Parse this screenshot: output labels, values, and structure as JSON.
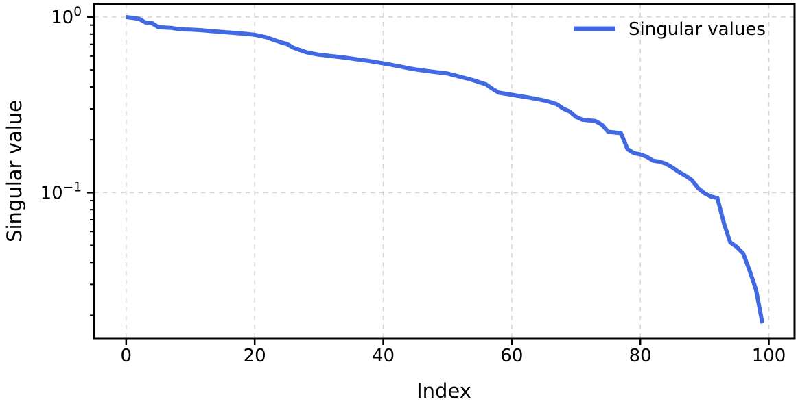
{
  "chart_data": {
    "type": "line",
    "title": "",
    "xlabel": "Index",
    "ylabel": "Singular value",
    "x_scale": "linear",
    "y_scale": "log",
    "xlim": [
      -5,
      104
    ],
    "ylim": [
      0.0148,
      1.186
    ],
    "grid": "dashed-major-both-axes",
    "grid_color": "#d3d3d3",
    "x_ticks": [
      0,
      20,
      40,
      60,
      80,
      100
    ],
    "y_ticks": [
      {
        "value": 1.0,
        "label_base": "10",
        "label_exp": "0"
      },
      {
        "value": 0.1,
        "label_base": "10",
        "label_exp": "−1"
      }
    ],
    "legend": {
      "position": "upper-right",
      "frame": false,
      "entries": [
        {
          "label": "Singular values",
          "color": "#4169e1"
        }
      ]
    },
    "series": [
      {
        "name": "Singular values",
        "color": "#4169e1",
        "line_width": 6,
        "x_is_index": true,
        "values": [
          1.0,
          0.99,
          0.978,
          0.932,
          0.925,
          0.876,
          0.872,
          0.868,
          0.856,
          0.851,
          0.848,
          0.845,
          0.84,
          0.834,
          0.828,
          0.823,
          0.817,
          0.812,
          0.806,
          0.8,
          0.792,
          0.78,
          0.764,
          0.741,
          0.72,
          0.704,
          0.67,
          0.65,
          0.631,
          0.62,
          0.611,
          0.605,
          0.599,
          0.594,
          0.588,
          0.581,
          0.574,
          0.568,
          0.561,
          0.553,
          0.545,
          0.537,
          0.529,
          0.52,
          0.511,
          0.504,
          0.498,
          0.492,
          0.487,
          0.482,
          0.477,
          0.467,
          0.457,
          0.447,
          0.437,
          0.425,
          0.414,
          0.39,
          0.371,
          0.366,
          0.361,
          0.356,
          0.351,
          0.346,
          0.341,
          0.335,
          0.328,
          0.319,
          0.301,
          0.29,
          0.27,
          0.26,
          0.258,
          0.256,
          0.244,
          0.222,
          0.22,
          0.218,
          0.177,
          0.168,
          0.165,
          0.16,
          0.152,
          0.15,
          0.146,
          0.139,
          0.131,
          0.125,
          0.118,
          0.106,
          0.099,
          0.095,
          0.093,
          0.067,
          0.052,
          0.049,
          0.045,
          0.036,
          0.028,
          0.018
        ]
      }
    ]
  }
}
